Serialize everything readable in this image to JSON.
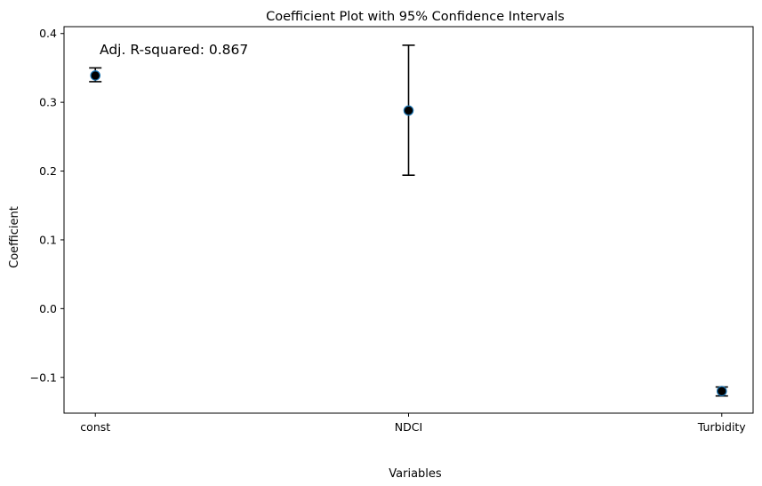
{
  "chart_data": {
    "type": "scatter",
    "title": "Coefficient Plot with 95% Confidence Intervals",
    "xlabel": "Variables",
    "ylabel": "Coefficient",
    "categories": [
      "const",
      "NDCI",
      "Turbidity"
    ],
    "coef": [
      0.339,
      0.288,
      -0.12
    ],
    "ci_lower": [
      0.33,
      0.194,
      -0.127
    ],
    "ci_upper": [
      0.35,
      0.383,
      -0.114
    ],
    "ylim": [
      -0.152,
      0.41
    ],
    "xlim": [
      -0.1,
      2.1
    ],
    "yticks": [
      -0.1,
      0.0,
      0.1,
      0.2,
      0.3,
      0.4
    ],
    "ytick_labels": [
      "−0.1",
      "0.0",
      "0.1",
      "0.2",
      "0.3",
      "0.4"
    ],
    "annotation": "Adj. R-squared: 0.867",
    "grid": false,
    "marker_color": "#000000",
    "marker_edge_color": "#1f77b4",
    "errorbar_color": "#000000"
  }
}
